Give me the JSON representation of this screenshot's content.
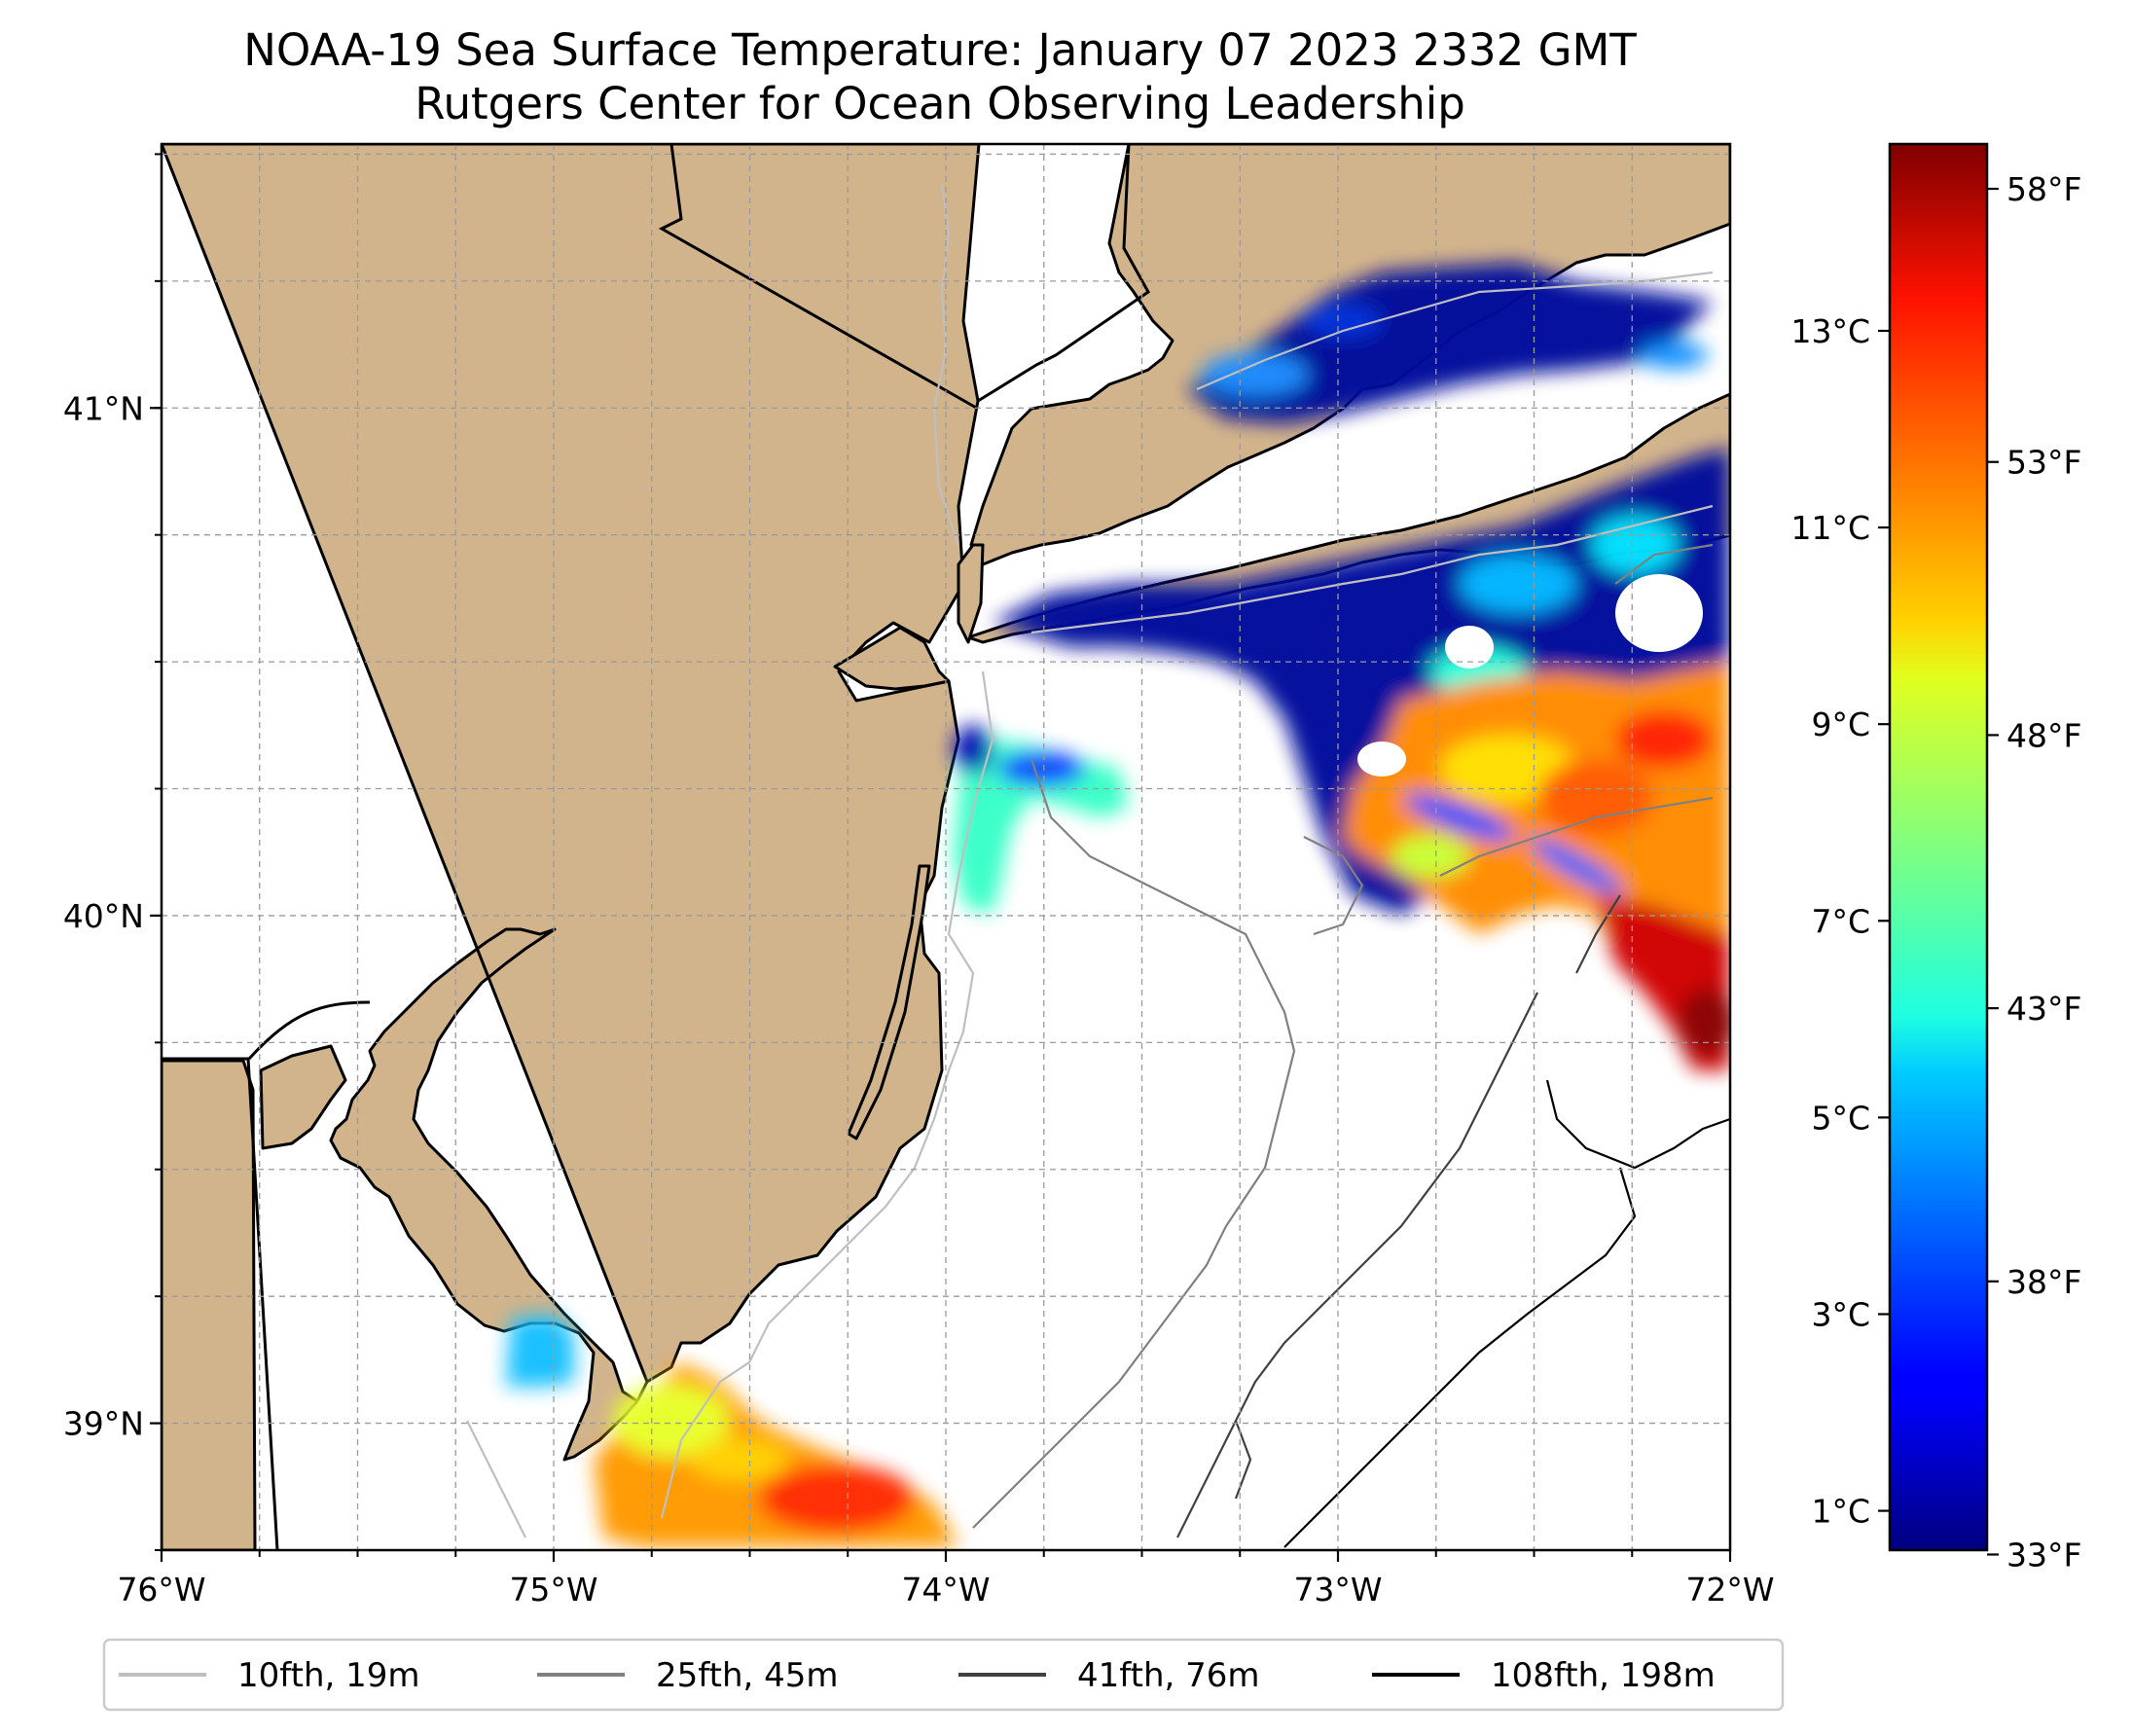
{
  "title": "NOAA-19 Sea Surface Temperature: January 07 2023 2332 GMT",
  "subtitle": "Rutgers Center for Ocean Observing Leadership",
  "map": {
    "extent": {
      "lon_min": -76,
      "lon_max": -72,
      "lat_min": 38.75,
      "lat_max": 41.52
    },
    "lon_ticks": [
      {
        "value": -76,
        "label": "76°W"
      },
      {
        "value": -75,
        "label": "75°W"
      },
      {
        "value": -74,
        "label": "74°W"
      },
      {
        "value": -73,
        "label": "73°W"
      },
      {
        "value": -72,
        "label": "72°W"
      }
    ],
    "lat_ticks": [
      {
        "value": 41,
        "label": "41°N"
      },
      {
        "value": 40,
        "label": "40°N"
      },
      {
        "value": 39,
        "label": "39°N"
      }
    ],
    "grid": true,
    "land_color": "#d2b48c"
  },
  "colorbar": {
    "colormap": "jet",
    "celsius_range": [
      0.6,
      14.9
    ],
    "celsius_ticks": [
      {
        "value": 1,
        "label": "1°C"
      },
      {
        "value": 3,
        "label": "3°C"
      },
      {
        "value": 5,
        "label": "5°C"
      },
      {
        "value": 7,
        "label": "7°C"
      },
      {
        "value": 9,
        "label": "9°C"
      },
      {
        "value": 11,
        "label": "11°C"
      },
      {
        "value": 13,
        "label": "13°C"
      }
    ],
    "fahrenheit_ticks": [
      {
        "value": 33,
        "label": "33°F"
      },
      {
        "value": 38,
        "label": "38°F"
      },
      {
        "value": 43,
        "label": "43°F"
      },
      {
        "value": 48,
        "label": "48°F"
      },
      {
        "value": 53,
        "label": "53°F"
      },
      {
        "value": 58,
        "label": "58°F"
      }
    ]
  },
  "legend": {
    "placement": "bottom",
    "items": [
      {
        "label": "10fth, 19m",
        "color": "#bfbfbf"
      },
      {
        "label": "25fth, 45m",
        "color": "#808080"
      },
      {
        "label": "41fth, 76m",
        "color": "#404040"
      },
      {
        "label": "108fth, 198m",
        "color": "#000000"
      }
    ]
  }
}
